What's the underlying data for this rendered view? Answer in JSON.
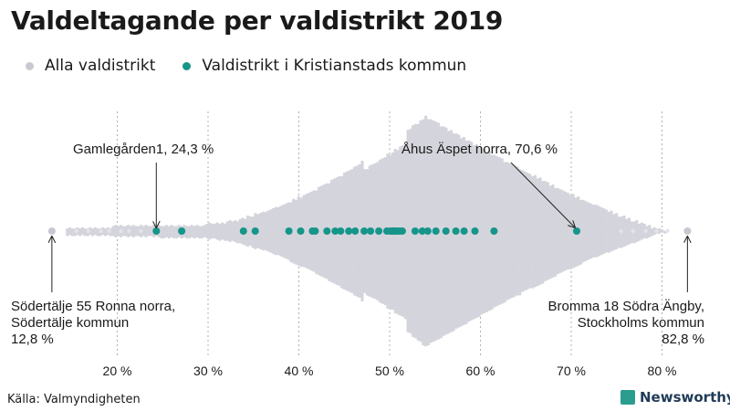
{
  "title": "Valdeltagande per valdistrikt 2019",
  "legend": {
    "all": "Alla valdistrikt",
    "kristianstad": "Valdistrikt i Kristianstads kommun"
  },
  "colors": {
    "all": "#d4d4dc",
    "all_extreme": "#c8c8d2",
    "kristianstad": "#16958a",
    "grid": "#b0b0b0",
    "text": "#1a1a1a"
  },
  "chart_data": {
    "type": "scatter",
    "variant": "beeswarm",
    "title": "Valdeltagande per valdistrikt 2019",
    "xlabel": "",
    "ylabel": "",
    "xlim": [
      10,
      85
    ],
    "ticks": [
      20,
      30,
      40,
      50,
      60,
      70,
      80
    ],
    "tick_labels": [
      "20 %",
      "30 %",
      "40 %",
      "50 %",
      "60 %",
      "70 %",
      "80 %"
    ],
    "series": [
      {
        "name": "Alla valdistrikt",
        "distribution": {
          "min": 12.8,
          "max": 82.8,
          "peak": 54,
          "spread": 8.5
        }
      },
      {
        "name": "Valdistrikt i Kristianstads kommun",
        "values": [
          24.3,
          27.1,
          33.9,
          35.2,
          38.9,
          40.2,
          41.5,
          41.8,
          43.1,
          44.0,
          44.6,
          45.5,
          46.2,
          47.2,
          47.9,
          48.8,
          49.7,
          50.1,
          50.3,
          50.5,
          50.6,
          50.8,
          51.1,
          51.4,
          52.8,
          53.6,
          54.2,
          55.1,
          56.2,
          57.3,
          58.2,
          59.4,
          61.5,
          70.6
        ]
      }
    ],
    "annotations": [
      {
        "id": "min",
        "lines": [
          "Södertälje 55 Ronna norra,",
          "Södertälje kommun",
          "12,8 %"
        ],
        "value": 12.8
      },
      {
        "id": "max",
        "lines": [
          "Bromma 18 Södra Ängby,",
          "Stockholms kommun",
          "82,8 %"
        ],
        "value": 82.8
      },
      {
        "id": "low_k",
        "lines": [
          "Gamlegården1, 24,3 %"
        ],
        "value": 24.3
      },
      {
        "id": "high_k",
        "lines": [
          "Åhus Äspet norra, 70,6 %"
        ],
        "value": 70.6
      }
    ]
  },
  "footer": {
    "source": "Källa: Valmyndigheten",
    "brand": "Newsworthy"
  }
}
